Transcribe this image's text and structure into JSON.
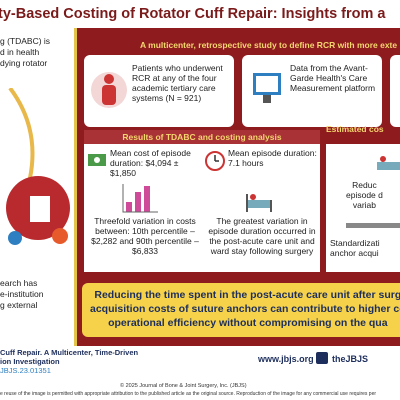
{
  "header": {
    "title": "ty-Based Costing of Rotator Cuff Repair: Insights from a"
  },
  "left": {
    "top_lines": [
      "g (TDABC) is",
      "d in health",
      "dying rotator"
    ],
    "bottom_lines": [
      "earch has",
      "e-institution",
      "g external"
    ]
  },
  "banner": "A multicenter, retrospective study to define RCR with more exte",
  "boxes": [
    "Patients who underwent RCR at any of the four academic tertiary care systems (N = 921)",
    "Data from the Avant-Garde Health's Care Measurement platform"
  ],
  "results": {
    "heading": "Results of TDABC and costing analysis",
    "cells": [
      "Mean cost of episode duration: $4,094 ± $1,850",
      "Mean episode duration: 7.1 hours",
      "Threefold variation in costs between: 10th percentile – $2,282 and 90th percentile – $6,833",
      "The greatest variation in episode duration occurred in the post-acute care unit and ward stay following surgery"
    ]
  },
  "estimated": {
    "heading": "Estimated cos",
    "item1": [
      "Reduc",
      "episode d",
      "variab"
    ],
    "item2": [
      "Standardizati",
      "anchor acqui"
    ]
  },
  "conclusion": [
    "Reducing the time spent in the post-acute care unit after surg",
    "acquisition costs of suture anchors can contribute to higher co",
    "operational efficiency without compromising on the qua"
  ],
  "footer": {
    "citation": [
      "Cuff Repair. A Multicenter, Time-Driven",
      "ion Investigation",
      "JBJS.23.01351"
    ],
    "website": "www.jbjs.org",
    "social": "theJBJS",
    "copyright": "© 2025 Journal of Bone & Joint Surgery, Inc. (JBJS)",
    "notice": "e reuse of the image is permitted with appropriate attribution to the published article as the original source. Reproduction of the image for any commercial use requires per"
  }
}
